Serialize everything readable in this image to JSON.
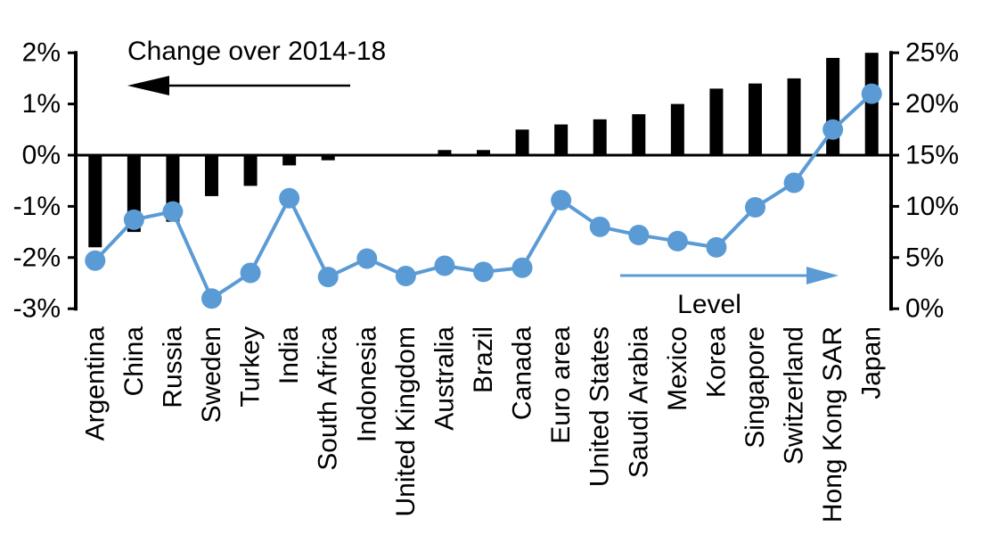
{
  "chart_data": {
    "type": "combo (bar + line, dual y-axis)",
    "categories": [
      "Argentina",
      "China",
      "Russia",
      "Sweden",
      "Turkey",
      "India",
      "South Africa",
      "Indonesia",
      "United Kingdom",
      "Australia",
      "Brazil",
      "Canada",
      "Euro area",
      "United States",
      "Saudi Arabia",
      "Mexico",
      "Korea",
      "Singapore",
      "Switzerland",
      "Hong Kong SAR",
      "Japan"
    ],
    "series": [
      {
        "name": "Change over 2014-18",
        "type": "bar",
        "axis": "left",
        "color": "#000000",
        "values": [
          -1.8,
          -1.5,
          -1.3,
          -0.8,
          -0.6,
          -0.2,
          -0.1,
          0,
          0,
          0.1,
          0.1,
          0.5,
          0.6,
          0.7,
          0.8,
          1.0,
          1.3,
          1.4,
          1.5,
          1.9,
          2.0
        ]
      },
      {
        "name": "Level",
        "type": "line",
        "axis": "right",
        "color": "#5B9BD5",
        "values": [
          4.7,
          8.7,
          9.5,
          1.0,
          3.5,
          10.8,
          3.1,
          4.9,
          3.2,
          4.2,
          3.6,
          4.0,
          10.6,
          8.0,
          7.2,
          6.6,
          6.0,
          9.9,
          12.3,
          17.5,
          21.0
        ]
      }
    ],
    "left_axis": {
      "min": -3,
      "max": 2,
      "tick_values": [
        2,
        1,
        0,
        -1,
        -2,
        -3
      ],
      "tick_labels": [
        "2%",
        "1%",
        "0%",
        "-1%",
        "-2%",
        "-3%"
      ]
    },
    "right_axis": {
      "min": 0,
      "max": 25,
      "tick_values": [
        25,
        20,
        15,
        10,
        5,
        0
      ],
      "tick_labels": [
        "25%",
        "20%",
        "15%",
        "10%",
        "5%",
        "0%"
      ]
    },
    "annotations": {
      "change": {
        "text": "Change over 2014-18",
        "arrow_direction": "left",
        "arrow_color": "#000000"
      },
      "level": {
        "text": "Level",
        "arrow_direction": "right",
        "arrow_color": "#5B9BD5"
      }
    },
    "grid": false,
    "legend_position": "none (in-chart labeled arrows)",
    "background": "#FFFFFF"
  }
}
